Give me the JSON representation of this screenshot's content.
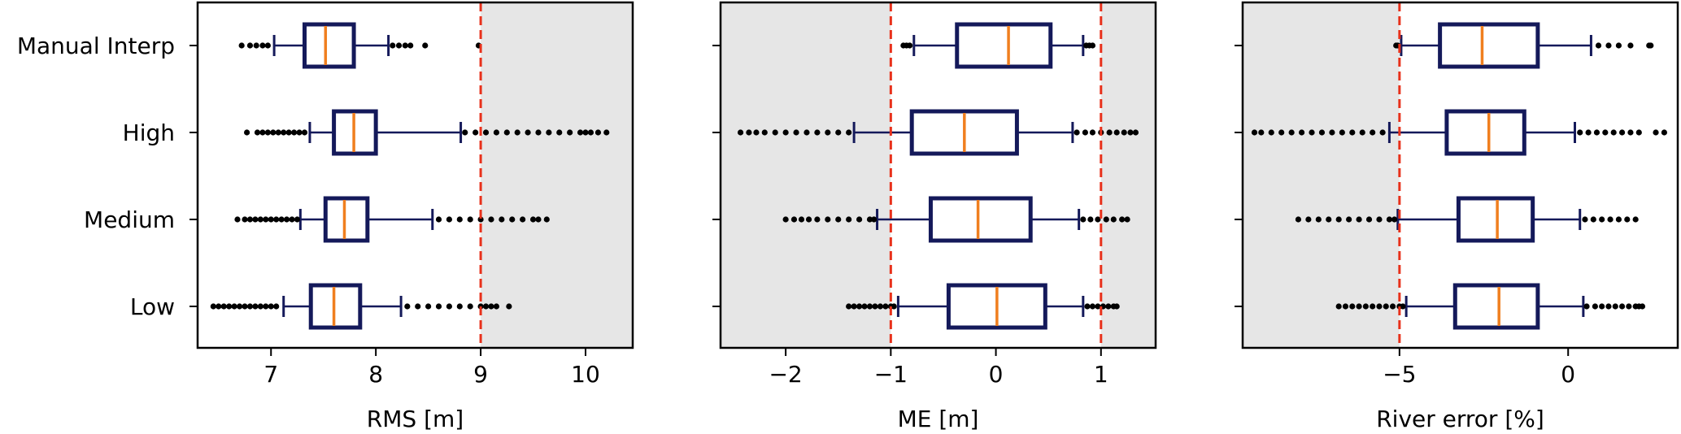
{
  "chart_data": [
    {
      "type": "boxplot",
      "orientation": "horizontal",
      "xlabel": "RMS [m]",
      "categories": [
        "Low",
        "Medium",
        "High",
        "Manual Interp"
      ],
      "xlim": [
        6.3,
        10.45
      ],
      "xticks": [
        7,
        8,
        9,
        10
      ],
      "xtick_labels": [
        "7",
        "8",
        "9",
        "10"
      ],
      "threshold_lines": [
        9
      ],
      "shaded_regions": [
        [
          9,
          10.45
        ]
      ],
      "boxes": [
        {
          "category": "Low",
          "whislo": 7.12,
          "q1": 7.38,
          "med": 7.6,
          "q3": 7.85,
          "whishi": 8.24,
          "fliers_low": [
            6.45,
            6.5,
            6.55,
            6.6,
            6.65,
            6.7,
            6.75,
            6.8,
            6.85,
            6.9,
            6.95,
            7.0,
            7.05
          ],
          "fliers_high": [
            8.3,
            8.4,
            8.5,
            8.6,
            8.7,
            8.8,
            8.9,
            9.0,
            9.05,
            9.1,
            9.15,
            9.27
          ]
        },
        {
          "category": "Medium",
          "whislo": 7.28,
          "q1": 7.52,
          "med": 7.7,
          "q3": 7.92,
          "whishi": 8.54,
          "fliers_low": [
            6.68,
            6.75,
            6.8,
            6.85,
            6.9,
            6.95,
            7.0,
            7.05,
            7.1,
            7.15,
            7.2,
            7.25
          ],
          "fliers_high": [
            8.6,
            8.7,
            8.8,
            8.9,
            9.0,
            9.1,
            9.2,
            9.3,
            9.4,
            9.5,
            9.55,
            9.63
          ]
        },
        {
          "category": "High",
          "whislo": 7.37,
          "q1": 7.6,
          "med": 7.79,
          "q3": 8.0,
          "whishi": 8.81,
          "fliers_low": [
            6.77,
            6.87,
            6.92,
            6.97,
            7.02,
            7.07,
            7.12,
            7.17,
            7.22,
            7.27,
            7.32
          ],
          "fliers_high": [
            8.85,
            8.95,
            9.05,
            9.15,
            9.25,
            9.35,
            9.45,
            9.55,
            9.65,
            9.75,
            9.85,
            9.95,
            10.0,
            10.05,
            10.12,
            10.2
          ]
        },
        {
          "category": "Manual Interp",
          "whislo": 7.03,
          "q1": 7.32,
          "med": 7.52,
          "q3": 7.79,
          "whishi": 8.12,
          "fliers_low": [
            6.72,
            6.8,
            6.86,
            6.92,
            6.97
          ],
          "fliers_high": [
            8.16,
            8.22,
            8.28,
            8.33,
            8.47,
            8.98
          ]
        }
      ]
    },
    {
      "type": "boxplot",
      "orientation": "horizontal",
      "xlabel": "ME [m]",
      "categories": [
        "Low",
        "Medium",
        "High",
        "Manual Interp"
      ],
      "xlim": [
        -2.62,
        1.52
      ],
      "xticks": [
        -2,
        -1,
        0,
        1
      ],
      "xtick_labels": [
        "−2",
        "−1",
        "0",
        "1"
      ],
      "threshold_lines": [
        -1,
        1
      ],
      "shaded_regions": [
        [
          -2.62,
          -1
        ],
        [
          1,
          1.52
        ]
      ],
      "boxes": [
        {
          "category": "Low",
          "whislo": -0.93,
          "q1": -0.45,
          "med": 0.01,
          "q3": 0.47,
          "whishi": 0.83,
          "fliers_low": [
            -1.4,
            -1.35,
            -1.3,
            -1.25,
            -1.2,
            -1.15,
            -1.1,
            -1.05,
            -1.0,
            -0.97
          ],
          "fliers_high": [
            0.87,
            0.92,
            0.97,
            1.02,
            1.07,
            1.12,
            1.15
          ]
        },
        {
          "category": "Medium",
          "whislo": -1.13,
          "q1": -0.62,
          "med": -0.17,
          "q3": 0.33,
          "whishi": 0.79,
          "fliers_low": [
            -2.0,
            -1.92,
            -1.85,
            -1.78,
            -1.7,
            -1.6,
            -1.5,
            -1.4,
            -1.3,
            -1.2,
            -1.16
          ],
          "fliers_high": [
            0.83,
            0.9,
            0.97,
            1.05,
            1.12,
            1.2,
            1.25
          ]
        },
        {
          "category": "High",
          "whislo": -1.35,
          "q1": -0.8,
          "med": -0.3,
          "q3": 0.2,
          "whishi": 0.73,
          "fliers_low": [
            -2.43,
            -2.35,
            -2.28,
            -2.2,
            -2.1,
            -2.0,
            -1.9,
            -1.8,
            -1.7,
            -1.6,
            -1.5,
            -1.4
          ],
          "fliers_high": [
            0.77,
            0.85,
            0.92,
            1.0,
            1.08,
            1.15,
            1.22,
            1.28,
            1.33
          ]
        },
        {
          "category": "Manual Interp",
          "whislo": -0.78,
          "q1": -0.37,
          "med": 0.12,
          "q3": 0.52,
          "whishi": 0.83,
          "fliers_low": [
            -0.88,
            -0.85,
            -0.82
          ],
          "fliers_high": [
            0.86,
            0.89,
            0.92
          ]
        }
      ]
    },
    {
      "type": "boxplot",
      "orientation": "horizontal",
      "xlabel": "River error [%]",
      "categories": [
        "Low",
        "Medium",
        "High",
        "Manual Interp"
      ],
      "xlim": [
        -9.65,
        3.25
      ],
      "xticks": [
        -5,
        0
      ],
      "xtick_labels": [
        "−5",
        "0"
      ],
      "threshold_lines": [
        -5
      ],
      "shaded_regions": [
        [
          -9.65,
          -5
        ]
      ],
      "boxes": [
        {
          "category": "Low",
          "whislo": -4.8,
          "q1": -3.35,
          "med": -2.05,
          "q3": -0.9,
          "whishi": 0.45,
          "fliers_low": [
            -6.8,
            -6.6,
            -6.4,
            -6.2,
            -6.0,
            -5.8,
            -5.6,
            -5.4,
            -5.2,
            -5.0,
            -4.9
          ],
          "fliers_high": [
            0.55,
            0.8,
            1.0,
            1.2,
            1.4,
            1.6,
            1.8,
            2.0,
            2.1,
            2.2
          ]
        },
        {
          "category": "Medium",
          "whislo": -5.05,
          "q1": -3.25,
          "med": -2.1,
          "q3": -1.05,
          "whishi": 0.35,
          "fliers_low": [
            -8.0,
            -7.7,
            -7.4,
            -7.1,
            -6.8,
            -6.5,
            -6.2,
            -5.9,
            -5.6,
            -5.3,
            -5.15
          ],
          "fliers_high": [
            0.5,
            0.75,
            1.0,
            1.25,
            1.5,
            1.75,
            2.0
          ]
        },
        {
          "category": "High",
          "whislo": -5.3,
          "q1": -3.6,
          "med": -2.35,
          "q3": -1.3,
          "whishi": 0.2,
          "fliers_low": [
            -9.3,
            -9.1,
            -8.8,
            -8.5,
            -8.2,
            -7.9,
            -7.6,
            -7.3,
            -7.0,
            -6.7,
            -6.4,
            -6.1,
            -5.8,
            -5.5
          ],
          "fliers_high": [
            0.35,
            0.6,
            0.85,
            1.1,
            1.35,
            1.6,
            1.85,
            2.1,
            2.6,
            2.85
          ]
        },
        {
          "category": "Manual Interp",
          "whislo": -4.95,
          "q1": -3.8,
          "med": -2.55,
          "q3": -0.9,
          "whishi": 0.68,
          "fliers_low": [
            -5.1,
            -5.05
          ],
          "fliers_high": [
            0.9,
            1.2,
            1.5,
            1.85,
            2.4,
            2.45
          ]
        }
      ]
    }
  ],
  "colors": {
    "box": "#14195a",
    "median": "#f07f1f",
    "threshold": "#e8311b",
    "shade": "#e6e6e6",
    "flier": "#000000"
  }
}
